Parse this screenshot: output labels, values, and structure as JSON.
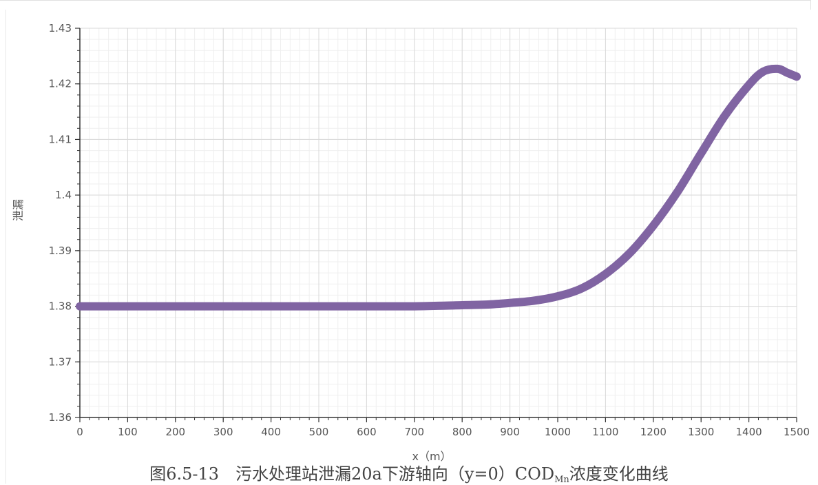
{
  "chart_data": {
    "type": "line",
    "title": "",
    "xlabel": "x（m）",
    "ylabel": "泄漏",
    "xlim": [
      0,
      1500
    ],
    "ylim": [
      1.36,
      1.43
    ],
    "x_ticks": [
      "0",
      "100",
      "200",
      "300",
      "400",
      "500",
      "600",
      "700",
      "800",
      "900",
      "1000",
      "1100",
      "1200",
      "1300",
      "1400",
      "1500"
    ],
    "y_ticks": [
      "1.36",
      "1.37",
      "1.38",
      "1.39",
      "1.4",
      "1.41",
      "1.42",
      "1.43"
    ],
    "grid": true,
    "legend": "none",
    "series": [
      {
        "color": "#8064a2",
        "x": [
          0,
          100,
          200,
          300,
          400,
          500,
          600,
          700,
          800,
          850,
          900,
          950,
          1000,
          1050,
          1100,
          1150,
          1200,
          1250,
          1300,
          1350,
          1400,
          1430,
          1460,
          1480,
          1500
        ],
        "y": [
          1.38,
          1.38,
          1.38,
          1.38,
          1.38,
          1.38,
          1.38,
          1.38,
          1.3802,
          1.3803,
          1.3806,
          1.381,
          1.3818,
          1.3832,
          1.3858,
          1.3895,
          1.3945,
          1.4005,
          1.4075,
          1.4143,
          1.4198,
          1.4222,
          1.4227,
          1.422,
          1.4213
        ]
      }
    ]
  },
  "caption": {
    "prefix": "图6.5-13　污水处理站泄漏20a下游轴向（y=0）COD",
    "subscript": "Mn",
    "suffix": "浓度变化曲线"
  }
}
